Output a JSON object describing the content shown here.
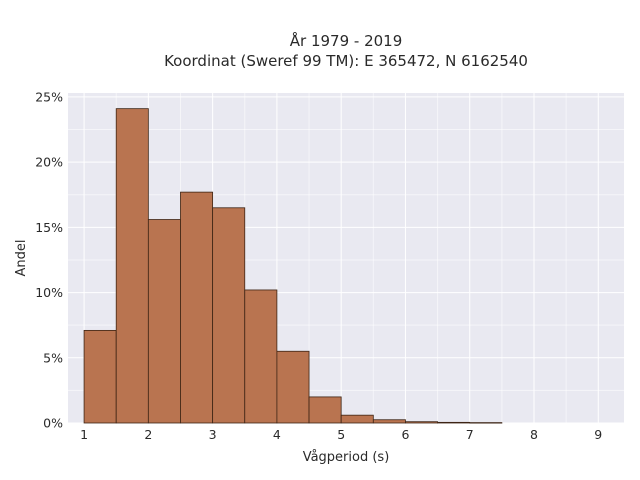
{
  "chart_data": {
    "type": "bar",
    "title": "År 1979 - 2019",
    "subtitle": "Koordinat (Sweref 99 TM): E 365472, N 6162540",
    "xlabel": "Vågperiod (s)",
    "ylabel": "Andel",
    "bin_width": 0.5,
    "bins": [
      {
        "x0": 1.0,
        "x1": 1.5,
        "value": 7.1
      },
      {
        "x0": 1.5,
        "x1": 2.0,
        "value": 24.1
      },
      {
        "x0": 2.0,
        "x1": 2.5,
        "value": 15.6
      },
      {
        "x0": 2.5,
        "x1": 3.0,
        "value": 17.7
      },
      {
        "x0": 3.0,
        "x1": 3.5,
        "value": 16.5
      },
      {
        "x0": 3.5,
        "x1": 4.0,
        "value": 10.2
      },
      {
        "x0": 4.0,
        "x1": 4.5,
        "value": 5.5
      },
      {
        "x0": 4.5,
        "x1": 5.0,
        "value": 2.0
      },
      {
        "x0": 5.0,
        "x1": 5.5,
        "value": 0.6
      },
      {
        "x0": 5.5,
        "x1": 6.0,
        "value": 0.25
      },
      {
        "x0": 6.0,
        "x1": 6.5,
        "value": 0.1
      },
      {
        "x0": 6.5,
        "x1": 7.0,
        "value": 0.05
      },
      {
        "x0": 7.0,
        "x1": 7.5,
        "value": 0.03
      }
    ],
    "xticks": [
      1,
      2,
      3,
      4,
      5,
      6,
      7,
      8,
      9
    ],
    "xtick_labels": [
      "1",
      "2",
      "3",
      "4",
      "5",
      "6",
      "7",
      "8",
      "9"
    ],
    "yticks": [
      0,
      5,
      10,
      15,
      20,
      25
    ],
    "ytick_labels": [
      "0%",
      "5%",
      "10%",
      "15%",
      "20%",
      "25%"
    ],
    "xlim": [
      0.75,
      9.4
    ],
    "ylim": [
      0,
      25.3
    ],
    "grid": true,
    "colors": {
      "bar_fill": "#b97450",
      "bar_edge": "#3d2414",
      "plot_background": "#e9e9f1",
      "grid": "#ffffff"
    }
  }
}
